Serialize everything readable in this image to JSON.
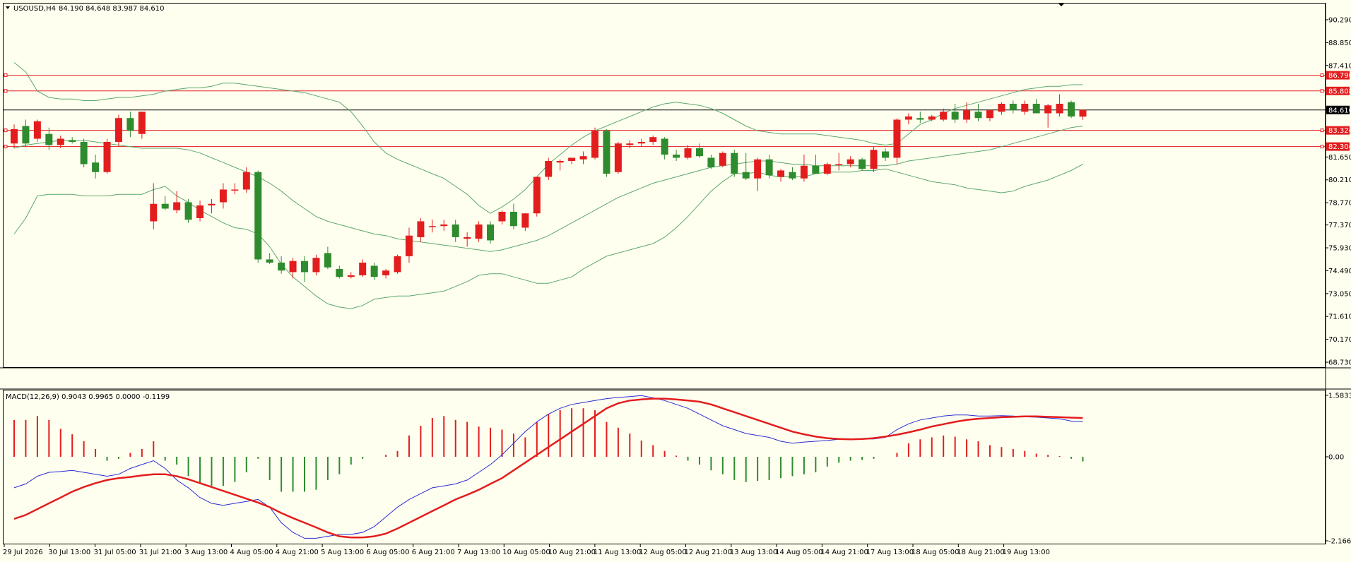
{
  "chart_data": [
    {
      "type": "candlestick",
      "header": {
        "symbol": "USOUSD,H4",
        "ohlc": "84.190 84.648 83.987 84.610"
      },
      "ylim": [
        68.73,
        91.0
      ],
      "y_ticks": [
        "90.290",
        "88.850",
        "87.410",
        "84.610",
        "83.326",
        "82.306",
        "81.650",
        "80.210",
        "78.770",
        "77.370",
        "75.930",
        "74.490",
        "73.050",
        "71.610",
        "70.170",
        "68.730"
      ],
      "price_levels": [
        {
          "value": 86.796,
          "label": "86.796",
          "color": "#e31d1d"
        },
        {
          "value": 85.808,
          "label": "85.808",
          "color": "#e31d1d"
        },
        {
          "value": 84.61,
          "label": "84.610",
          "color": "#000000"
        },
        {
          "value": 83.326,
          "label": "83.326",
          "color": "#e31d1d"
        },
        {
          "value": 82.306,
          "label": "82.306",
          "color": "#e31d1d"
        }
      ],
      "x_labels": [
        "29 Jul 2026",
        "30 Jul 13:00",
        "31 Jul 05:00",
        "31 Jul 21:00",
        "3 Aug 13:00",
        "4 Aug 05:00",
        "4 Aug 21:00",
        "5 Aug 13:00",
        "6 Aug 05:00",
        "6 Aug 21:00",
        "7 Aug 13:00",
        "10 Aug 05:00",
        "10 Aug 21:00",
        "11 Aug 13:00",
        "12 Aug 05:00",
        "12 Aug 21:00",
        "13 Aug 13:00",
        "14 Aug 05:00",
        "14 Aug 21:00",
        "17 Aug 13:00",
        "18 Aug 05:00",
        "18 Aug 21:00",
        "19 Aug 13:00"
      ],
      "colors": {
        "bull": "#e31d1d",
        "bear": "#2e8b2e",
        "band": "#5aa86a",
        "bg": "#fffff0"
      },
      "candles": [
        [
          82.5,
          83.7,
          82.2,
          83.4
        ],
        [
          83.6,
          84.0,
          82.3,
          82.5
        ],
        [
          82.8,
          84.0,
          82.6,
          83.9
        ],
        [
          83.1,
          83.5,
          82.1,
          82.4
        ],
        [
          82.4,
          83.0,
          82.2,
          82.8
        ],
        [
          82.7,
          82.9,
          82.5,
          82.6
        ],
        [
          82.6,
          82.8,
          81.0,
          81.2
        ],
        [
          81.3,
          81.8,
          80.3,
          80.7
        ],
        [
          80.7,
          82.8,
          80.6,
          82.6
        ],
        [
          82.6,
          84.3,
          82.3,
          84.1
        ],
        [
          84.1,
          84.5,
          82.9,
          83.3
        ],
        [
          83.1,
          84.5,
          82.8,
          84.5
        ],
        [
          77.6,
          80.0,
          77.1,
          78.7
        ],
        [
          78.7,
          79.2,
          78.3,
          78.4
        ],
        [
          78.3,
          79.5,
          78.1,
          78.8
        ],
        [
          78.8,
          79.0,
          77.5,
          77.7
        ],
        [
          77.8,
          78.9,
          77.6,
          78.6
        ],
        [
          78.6,
          79.0,
          78.1,
          78.7
        ],
        [
          78.8,
          80.0,
          78.4,
          79.6
        ],
        [
          79.6,
          80.0,
          79.3,
          79.6
        ],
        [
          79.6,
          81.0,
          79.4,
          80.7
        ],
        [
          80.7,
          80.8,
          75.0,
          75.2
        ],
        [
          75.2,
          75.6,
          74.9,
          75.0
        ],
        [
          75.0,
          75.4,
          74.3,
          74.5
        ],
        [
          74.4,
          75.3,
          74.0,
          75.1
        ],
        [
          75.1,
          75.4,
          73.8,
          74.4
        ],
        [
          74.4,
          75.5,
          74.2,
          75.3
        ],
        [
          75.6,
          76.0,
          74.6,
          74.7
        ],
        [
          74.6,
          74.8,
          74.0,
          74.1
        ],
        [
          74.1,
          74.4,
          74.0,
          74.2
        ],
        [
          74.2,
          75.2,
          74.1,
          75.0
        ],
        [
          74.8,
          75.0,
          73.9,
          74.1
        ],
        [
          74.2,
          74.6,
          74.0,
          74.5
        ],
        [
          74.4,
          75.5,
          74.3,
          75.4
        ],
        [
          75.4,
          77.2,
          75.0,
          76.7
        ],
        [
          76.6,
          77.8,
          76.3,
          77.6
        ],
        [
          77.3,
          77.7,
          76.9,
          77.3
        ],
        [
          77.3,
          77.7,
          77.0,
          77.4
        ],
        [
          77.4,
          77.7,
          76.3,
          76.6
        ],
        [
          76.5,
          76.9,
          76.0,
          76.6
        ],
        [
          76.5,
          77.6,
          76.3,
          77.4
        ],
        [
          77.4,
          77.6,
          76.2,
          76.4
        ],
        [
          77.6,
          78.3,
          77.4,
          78.2
        ],
        [
          78.2,
          78.7,
          77.1,
          77.3
        ],
        [
          77.2,
          78.1,
          77.0,
          78.1
        ],
        [
          78.1,
          80.4,
          77.9,
          80.4
        ],
        [
          80.4,
          81.6,
          80.2,
          81.4
        ],
        [
          81.3,
          81.5,
          80.8,
          81.4
        ],
        [
          81.4,
          81.6,
          81.2,
          81.6
        ],
        [
          81.5,
          82.0,
          81.2,
          81.7
        ],
        [
          81.6,
          83.5,
          81.5,
          83.3
        ],
        [
          83.3,
          83.4,
          80.4,
          80.6
        ],
        [
          80.7,
          82.6,
          80.6,
          82.5
        ],
        [
          82.4,
          82.7,
          82.2,
          82.5
        ],
        [
          82.5,
          82.8,
          82.3,
          82.6
        ],
        [
          82.6,
          83.0,
          82.4,
          82.9
        ],
        [
          82.8,
          82.9,
          81.5,
          81.8
        ],
        [
          81.8,
          82.1,
          81.4,
          81.6
        ],
        [
          81.6,
          82.4,
          81.5,
          82.2
        ],
        [
          82.2,
          82.5,
          81.6,
          81.7
        ],
        [
          81.6,
          81.8,
          80.9,
          81.0
        ],
        [
          81.1,
          82.0,
          81.0,
          81.9
        ],
        [
          81.9,
          82.1,
          80.4,
          80.6
        ],
        [
          80.7,
          81.9,
          80.2,
          80.3
        ],
        [
          80.3,
          81.6,
          79.5,
          81.5
        ],
        [
          81.5,
          81.8,
          80.3,
          80.5
        ],
        [
          80.4,
          80.9,
          80.1,
          80.8
        ],
        [
          80.7,
          81.0,
          80.2,
          80.3
        ],
        [
          80.3,
          81.8,
          80.1,
          81.1
        ],
        [
          81.1,
          81.8,
          80.6,
          80.6
        ],
        [
          80.6,
          81.3,
          80.5,
          81.2
        ],
        [
          81.2,
          81.9,
          80.8,
          81.2
        ],
        [
          81.2,
          81.7,
          81.0,
          81.5
        ],
        [
          81.5,
          81.6,
          80.8,
          80.9
        ],
        [
          80.9,
          82.3,
          80.7,
          82.1
        ],
        [
          82.0,
          82.2,
          81.4,
          81.6
        ],
        [
          81.6,
          84.1,
          81.2,
          84.0
        ],
        [
          84.0,
          84.4,
          83.7,
          84.2
        ],
        [
          84.1,
          84.5,
          83.8,
          84.0
        ],
        [
          84.0,
          84.3,
          83.9,
          84.2
        ],
        [
          84.0,
          84.7,
          83.9,
          84.5
        ],
        [
          84.5,
          85.0,
          83.8,
          84.0
        ],
        [
          84.0,
          85.1,
          83.8,
          84.6
        ],
        [
          84.5,
          85.0,
          83.9,
          84.1
        ],
        [
          84.1,
          84.6,
          83.9,
          84.6
        ],
        [
          84.5,
          85.1,
          84.3,
          85.0
        ],
        [
          85.0,
          85.2,
          84.4,
          84.6
        ],
        [
          84.5,
          85.2,
          84.3,
          85.0
        ],
        [
          85.0,
          85.3,
          84.4,
          84.4
        ],
        [
          84.4,
          85.0,
          83.5,
          84.9
        ],
        [
          84.4,
          85.6,
          84.2,
          85.0
        ],
        [
          85.1,
          85.2,
          84.1,
          84.2
        ],
        [
          84.19,
          84.648,
          83.987,
          84.61
        ]
      ],
      "upper_band": [
        87.6,
        87.0,
        85.8,
        85.4,
        85.3,
        85.3,
        85.2,
        85.2,
        85.3,
        85.4,
        85.4,
        85.5,
        85.6,
        85.8,
        85.9,
        86.0,
        86.0,
        86.1,
        86.3,
        86.3,
        86.2,
        86.1,
        86.0,
        85.9,
        85.8,
        85.7,
        85.5,
        85.3,
        85.1,
        84.5,
        83.6,
        82.6,
        81.9,
        81.5,
        81.2,
        80.9,
        80.6,
        80.3,
        79.8,
        79.3,
        78.6,
        78.1,
        78.5,
        79.0,
        79.6,
        80.4,
        81.2,
        81.8,
        82.4,
        82.9,
        83.3,
        83.6,
        83.9,
        84.2,
        84.5,
        84.8,
        85.0,
        85.1,
        85.0,
        84.9,
        84.7,
        84.4,
        84.0,
        83.6,
        83.3,
        83.2,
        83.1,
        83.1,
        83.1,
        83.1,
        83.0,
        82.9,
        82.8,
        82.7,
        82.5,
        82.4,
        82.5,
        83.1,
        83.7,
        84.0,
        84.4,
        84.7,
        84.9,
        85.1,
        85.3,
        85.5,
        85.7,
        85.9,
        86.0,
        86.1,
        86.1,
        86.2,
        86.2
      ],
      "middle_band": [
        82.2,
        82.4,
        82.5,
        82.6,
        82.7,
        82.7,
        82.7,
        82.6,
        82.5,
        82.4,
        82.3,
        82.2,
        82.2,
        82.2,
        82.2,
        82.1,
        81.9,
        81.6,
        81.3,
        81.0,
        80.7,
        80.4,
        80.0,
        79.5,
        78.9,
        78.4,
        77.9,
        77.6,
        77.4,
        77.2,
        77.0,
        76.8,
        76.7,
        76.5,
        76.4,
        76.3,
        76.2,
        76.1,
        76.0,
        75.9,
        75.8,
        75.7,
        75.8,
        76.0,
        76.2,
        76.4,
        76.7,
        77.1,
        77.5,
        77.9,
        78.3,
        78.7,
        79.1,
        79.4,
        79.7,
        80.0,
        80.2,
        80.4,
        80.6,
        80.8,
        81.0,
        81.1,
        81.2,
        81.3,
        81.4,
        81.4,
        81.3,
        81.2,
        81.2,
        81.1,
        81.1,
        81.1,
        81.1,
        81.1,
        81.1,
        81.1,
        81.2,
        81.4,
        81.5,
        81.6,
        81.7,
        81.8,
        81.9,
        82.0,
        82.1,
        82.3,
        82.5,
        82.7,
        82.9,
        83.1,
        83.3,
        83.5,
        83.6
      ],
      "lower_band": [
        76.8,
        77.8,
        79.2,
        79.3,
        79.3,
        79.3,
        79.2,
        79.2,
        79.2,
        79.3,
        79.3,
        79.3,
        79.6,
        79.8,
        79.2,
        78.8,
        78.3,
        77.9,
        77.5,
        77.2,
        77.1,
        76.8,
        76.0,
        74.9,
        74.1,
        73.5,
        72.9,
        72.4,
        72.2,
        72.1,
        72.3,
        72.7,
        72.8,
        72.9,
        72.9,
        73.0,
        73.1,
        73.2,
        73.5,
        73.8,
        74.2,
        74.3,
        74.3,
        74.1,
        73.9,
        73.7,
        73.7,
        73.9,
        74.1,
        74.6,
        75.0,
        75.4,
        75.6,
        75.8,
        76.0,
        76.2,
        76.6,
        77.2,
        77.9,
        78.7,
        79.5,
        80.1,
        80.6,
        80.6,
        80.7,
        80.5,
        80.4,
        80.4,
        80.4,
        80.6,
        80.7,
        80.7,
        80.7,
        80.8,
        80.8,
        80.9,
        80.7,
        80.5,
        80.3,
        80.1,
        80.0,
        79.9,
        79.7,
        79.6,
        79.5,
        79.4,
        79.5,
        79.8,
        80.0,
        80.2,
        80.5,
        80.8,
        81.2
      ]
    },
    {
      "type": "macd",
      "header": "MACD(12,26,9) 0.9043 0.9965 0.0000 -0.1199",
      "ylim": [
        -2.1664,
        1.5833
      ],
      "y_ticks": [
        "1.5833",
        "0.00",
        "-2.1664"
      ],
      "colors": {
        "hist_pos": "#e31d1d",
        "hist_neg": "#2e8b2e",
        "macd": "#2b2bd4",
        "signal": "#e31d1d"
      },
      "histogram": [
        0.95,
        0.95,
        1.05,
        0.95,
        0.72,
        0.58,
        0.4,
        0.2,
        -0.1,
        -0.05,
        0.1,
        0.2,
        0.4,
        -0.1,
        -0.2,
        -0.5,
        -0.7,
        -0.75,
        -0.75,
        -0.65,
        -0.4,
        -0.05,
        -0.6,
        -0.9,
        -0.9,
        -0.9,
        -0.85,
        -0.6,
        -0.45,
        -0.2,
        -0.05,
        0.0,
        0.05,
        0.15,
        0.55,
        0.8,
        1.0,
        1.05,
        0.95,
        0.9,
        0.78,
        0.75,
        0.7,
        0.6,
        0.5,
        0.9,
        1.1,
        1.2,
        1.25,
        1.25,
        1.2,
        0.9,
        0.75,
        0.6,
        0.42,
        0.3,
        0.15,
        0.03,
        -0.1,
        -0.2,
        -0.35,
        -0.45,
        -0.6,
        -0.65,
        -0.62,
        -0.6,
        -0.55,
        -0.5,
        -0.45,
        -0.4,
        -0.25,
        -0.15,
        -0.1,
        -0.08,
        -0.05,
        0.0,
        0.1,
        0.35,
        0.45,
        0.5,
        0.55,
        0.52,
        0.45,
        0.4,
        0.3,
        0.25,
        0.2,
        0.15,
        0.08,
        0.05,
        0.02,
        -0.05,
        -0.12
      ],
      "macd": [
        -0.8,
        -0.7,
        -0.5,
        -0.4,
        -0.38,
        -0.35,
        -0.4,
        -0.45,
        -0.5,
        -0.45,
        -0.3,
        -0.2,
        -0.1,
        -0.3,
        -0.6,
        -0.8,
        -1.05,
        -1.2,
        -1.25,
        -1.2,
        -1.15,
        -1.1,
        -1.3,
        -1.7,
        -1.95,
        -2.1,
        -2.1,
        -2.05,
        -2.0,
        -2.0,
        -1.95,
        -1.8,
        -1.55,
        -1.3,
        -1.1,
        -0.95,
        -0.8,
        -0.75,
        -0.7,
        -0.6,
        -0.4,
        -0.2,
        0.05,
        0.35,
        0.65,
        0.9,
        1.1,
        1.25,
        1.35,
        1.4,
        1.45,
        1.5,
        1.53,
        1.55,
        1.58,
        1.52,
        1.45,
        1.35,
        1.25,
        1.1,
        0.95,
        0.8,
        0.7,
        0.6,
        0.55,
        0.5,
        0.4,
        0.35,
        0.38,
        0.4,
        0.42,
        0.45,
        0.45,
        0.46,
        0.46,
        0.5,
        0.7,
        0.85,
        0.95,
        1.0,
        1.05,
        1.08,
        1.08,
        1.05,
        1.05,
        1.06,
        1.05,
        1.03,
        1.02,
        1.0,
        0.98,
        0.92,
        0.9
      ],
      "signal": [
        -1.6,
        -1.5,
        -1.35,
        -1.2,
        -1.05,
        -0.9,
        -0.78,
        -0.68,
        -0.6,
        -0.55,
        -0.52,
        -0.48,
        -0.45,
        -0.45,
        -0.5,
        -0.58,
        -0.68,
        -0.78,
        -0.88,
        -0.98,
        -1.08,
        -1.18,
        -1.3,
        -1.45,
        -1.58,
        -1.7,
        -1.82,
        -1.95,
        -2.05,
        -2.08,
        -2.08,
        -2.05,
        -1.98,
        -1.85,
        -1.7,
        -1.55,
        -1.4,
        -1.25,
        -1.1,
        -0.98,
        -0.85,
        -0.7,
        -0.55,
        -0.35,
        -0.15,
        0.05,
        0.25,
        0.45,
        0.65,
        0.85,
        1.05,
        1.25,
        1.38,
        1.45,
        1.48,
        1.5,
        1.5,
        1.48,
        1.45,
        1.42,
        1.35,
        1.25,
        1.15,
        1.05,
        0.95,
        0.85,
        0.75,
        0.65,
        0.58,
        0.52,
        0.48,
        0.46,
        0.45,
        0.46,
        0.48,
        0.52,
        0.57,
        0.63,
        0.7,
        0.78,
        0.84,
        0.9,
        0.95,
        0.98,
        1.0,
        1.02,
        1.03,
        1.04,
        1.04,
        1.03,
        1.02,
        1.01,
        1.0
      ]
    }
  ]
}
